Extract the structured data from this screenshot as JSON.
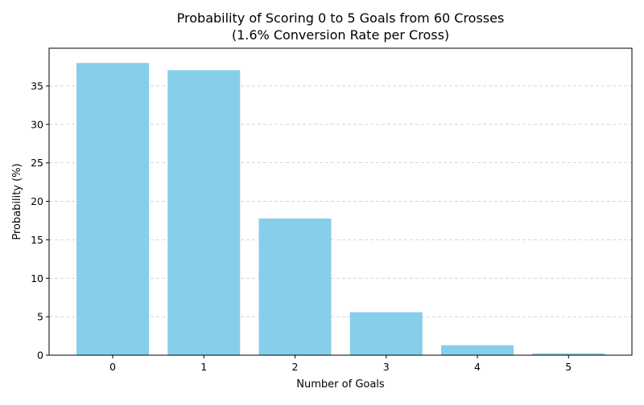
{
  "chart_data": {
    "type": "bar",
    "title_line1": "Probability of Scoring 0 to 5 Goals from 60 Crosses",
    "title_line2": "(1.6% Conversion Rate per Cross)",
    "xlabel": "Number of Goals",
    "ylabel": "Probability (%)",
    "categories": [
      "0",
      "1",
      "2",
      "3",
      "4",
      "5"
    ],
    "values": [
      37.98,
      37.05,
      17.77,
      5.59,
      1.29,
      0.23
    ],
    "ylim": [
      0,
      39.9
    ],
    "yticks": [
      0,
      5,
      10,
      15,
      20,
      25,
      30,
      35
    ],
    "grid": "y-dashed",
    "legend": "none",
    "colors": {
      "bar": "#87ceeb",
      "grid": "#c8c8c8",
      "axis": "#000000"
    }
  }
}
